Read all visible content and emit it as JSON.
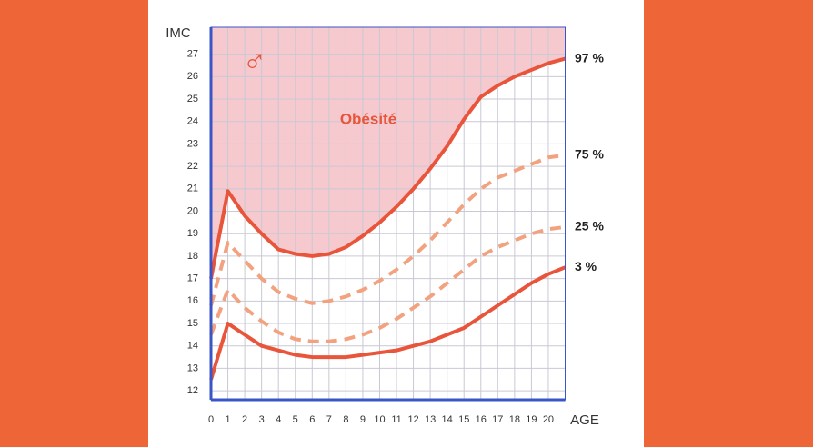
{
  "chart_data": {
    "type": "line",
    "y_label": "IMC",
    "x_label": "AGE",
    "symbol": "♂",
    "zone_label": "Obésité",
    "x": [
      0,
      1,
      2,
      3,
      4,
      5,
      6,
      7,
      8,
      9,
      10,
      11,
      12,
      13,
      14,
      15,
      16,
      17,
      18,
      19,
      20,
      21
    ],
    "series": [
      {
        "name": "97 %",
        "color": "#e8553a",
        "dash": false,
        "fill_above": "#f6c9cf",
        "values": [
          17.0,
          20.9,
          19.8,
          19.0,
          18.3,
          18.1,
          18.0,
          18.1,
          18.4,
          18.9,
          19.5,
          20.2,
          21.0,
          21.9,
          22.9,
          24.1,
          25.1,
          25.6,
          26.0,
          26.3,
          26.6,
          26.8
        ]
      },
      {
        "name": "75 %",
        "color": "#f2a27e",
        "dash": true,
        "values": [
          15.8,
          18.6,
          17.8,
          17.0,
          16.4,
          16.1,
          15.9,
          16.0,
          16.2,
          16.5,
          16.9,
          17.4,
          18.0,
          18.7,
          19.5,
          20.3,
          21.0,
          21.5,
          21.8,
          22.1,
          22.4,
          22.5
        ]
      },
      {
        "name": "25 %",
        "color": "#f2a27e",
        "dash": true,
        "values": [
          14.5,
          16.5,
          15.7,
          15.1,
          14.6,
          14.3,
          14.2,
          14.2,
          14.3,
          14.5,
          14.8,
          15.2,
          15.7,
          16.2,
          16.8,
          17.4,
          18.0,
          18.4,
          18.7,
          19.0,
          19.2,
          19.3
        ]
      },
      {
        "name": "3 %",
        "color": "#e8553a",
        "dash": false,
        "values": [
          12.5,
          15.0,
          14.5,
          14.0,
          13.8,
          13.6,
          13.5,
          13.5,
          13.5,
          13.6,
          13.7,
          13.8,
          14.0,
          14.2,
          14.5,
          14.8,
          15.3,
          15.8,
          16.3,
          16.8,
          17.2,
          17.5
        ]
      }
    ],
    "xlim": [
      0,
      21
    ],
    "xticks": [
      0,
      1,
      2,
      3,
      4,
      5,
      6,
      7,
      8,
      9,
      10,
      11,
      12,
      13,
      14,
      15,
      16,
      17,
      18,
      19,
      20
    ],
    "ylim": [
      11.6,
      28.2
    ],
    "yticks": [
      12,
      13,
      14,
      15,
      16,
      17,
      18,
      19,
      20,
      21,
      22,
      23,
      24,
      25,
      26,
      27
    ],
    "grid": true,
    "axis_color": "#3a55c8"
  }
}
